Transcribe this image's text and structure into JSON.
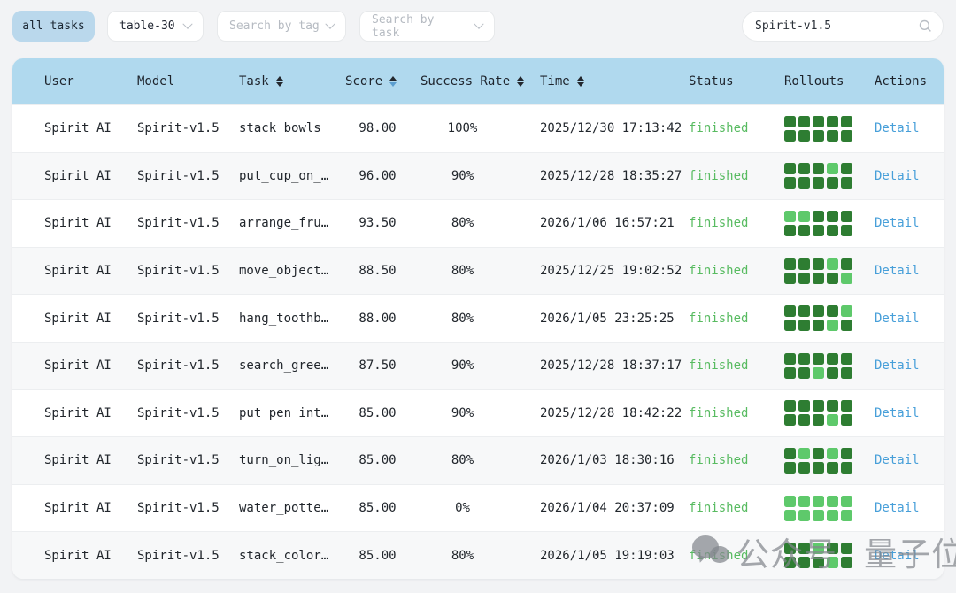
{
  "toolbar": {
    "all_tasks_label": "all tasks",
    "table_select_value": "table-30",
    "tag_filter_placeholder": "Search by tag",
    "task_filter_placeholder": "Search by task",
    "search_value": "Spirit-v1.5"
  },
  "table": {
    "columns": [
      {
        "label": "User",
        "sortable": false
      },
      {
        "label": "Model",
        "sortable": false
      },
      {
        "label": "Task",
        "sortable": true
      },
      {
        "label": "Score",
        "sortable": true,
        "sorted": "desc"
      },
      {
        "label": "Success Rate",
        "sortable": true
      },
      {
        "label": "Time",
        "sortable": true
      },
      {
        "label": "Status",
        "sortable": false
      },
      {
        "label": "Rollouts",
        "sortable": false
      },
      {
        "label": "Actions",
        "sortable": false
      }
    ],
    "rows": [
      {
        "user": "Spirit AI",
        "model": "Spirit-v1.5",
        "task": "stack_bowls",
        "score": "98.00",
        "success_rate": "100%",
        "time": "2025/12/30 17:13:42",
        "status": "finished",
        "rollouts": [
          1,
          1,
          1,
          1,
          1,
          1,
          1,
          1,
          1,
          1
        ],
        "action": "Detail"
      },
      {
        "user": "Spirit AI",
        "model": "Spirit-v1.5",
        "task": "put_cup_on_…",
        "score": "96.00",
        "success_rate": "90%",
        "time": "2025/12/28 18:35:27",
        "status": "finished",
        "rollouts": [
          1,
          1,
          1,
          0,
          1,
          1,
          1,
          1,
          1,
          1
        ],
        "action": "Detail"
      },
      {
        "user": "Spirit AI",
        "model": "Spirit-v1.5",
        "task": "arrange_fru…",
        "score": "93.50",
        "success_rate": "80%",
        "time": "2026/1/06 16:57:21",
        "status": "finished",
        "rollouts": [
          0,
          0,
          1,
          1,
          1,
          1,
          1,
          1,
          1,
          1
        ],
        "action": "Detail"
      },
      {
        "user": "Spirit AI",
        "model": "Spirit-v1.5",
        "task": "move_object…",
        "score": "88.50",
        "success_rate": "80%",
        "time": "2025/12/25 19:02:52",
        "status": "finished",
        "rollouts": [
          1,
          1,
          1,
          0,
          1,
          1,
          1,
          1,
          1,
          0
        ],
        "action": "Detail"
      },
      {
        "user": "Spirit AI",
        "model": "Spirit-v1.5",
        "task": "hang_toothb…",
        "score": "88.00",
        "success_rate": "80%",
        "time": "2026/1/05 23:25:25",
        "status": "finished",
        "rollouts": [
          1,
          1,
          1,
          1,
          0,
          1,
          1,
          1,
          0,
          1
        ],
        "action": "Detail"
      },
      {
        "user": "Spirit AI",
        "model": "Spirit-v1.5",
        "task": "search_gree…",
        "score": "87.50",
        "success_rate": "90%",
        "time": "2025/12/28 18:37:17",
        "status": "finished",
        "rollouts": [
          1,
          1,
          1,
          1,
          1,
          1,
          1,
          0,
          1,
          1
        ],
        "action": "Detail"
      },
      {
        "user": "Spirit AI",
        "model": "Spirit-v1.5",
        "task": "put_pen_int…",
        "score": "85.00",
        "success_rate": "90%",
        "time": "2025/12/28 18:42:22",
        "status": "finished",
        "rollouts": [
          1,
          1,
          1,
          1,
          1,
          1,
          1,
          1,
          0,
          1
        ],
        "action": "Detail"
      },
      {
        "user": "Spirit AI",
        "model": "Spirit-v1.5",
        "task": "turn_on_lig…",
        "score": "85.00",
        "success_rate": "80%",
        "time": "2026/1/03 18:30:16",
        "status": "finished",
        "rollouts": [
          1,
          0,
          1,
          0,
          1,
          1,
          1,
          1,
          1,
          1
        ],
        "action": "Detail"
      },
      {
        "user": "Spirit AI",
        "model": "Spirit-v1.5",
        "task": "water_potte…",
        "score": "85.00",
        "success_rate": "0%",
        "time": "2026/1/04 20:37:09",
        "status": "finished",
        "rollouts": [
          0,
          0,
          0,
          0,
          0,
          0,
          0,
          0,
          0,
          0
        ],
        "action": "Detail"
      },
      {
        "user": "Spirit AI",
        "model": "Spirit-v1.5",
        "task": "stack_color…",
        "score": "85.00",
        "success_rate": "80%",
        "time": "2026/1/05 19:19:03",
        "status": "finished",
        "rollouts": [
          1,
          1,
          0,
          1,
          1,
          1,
          1,
          1,
          0,
          1
        ],
        "action": "Detail"
      }
    ]
  },
  "watermark": {
    "label_left": "公众号",
    "label_right": "量子位"
  },
  "colors": {
    "header_blue": "#b0d9ee",
    "all_tasks_blue": "#bad8ec",
    "status_green": "#58bb61",
    "link_blue": "#479fd9",
    "rollout_success_green": "#2e7d32",
    "rollout_fail_green": "#5ec96b"
  }
}
